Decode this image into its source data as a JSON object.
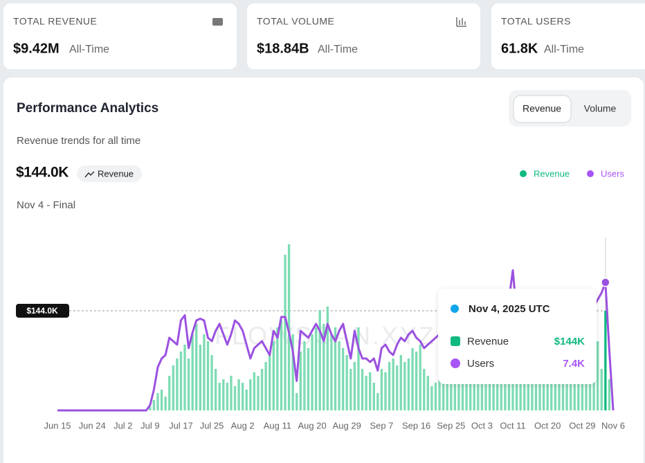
{
  "stats": [
    {
      "label": "TOTAL REVENUE",
      "value": "$9.42M",
      "period": "All-Time"
    },
    {
      "label": "TOTAL VOLUME",
      "value": "$18.84B",
      "period": "All-Time"
    },
    {
      "label": "TOTAL USERS",
      "value": "61.8K",
      "period": "All-Time"
    }
  ],
  "panel": {
    "title": "Performance Analytics",
    "subtitle": "Revenue trends for all time",
    "headline": "$144.0K",
    "badge": "Revenue",
    "date_label": "Nov 4 - Final",
    "toggle": [
      "Revenue",
      "Volume"
    ]
  },
  "chart_data": {
    "type": "bar",
    "categories": [
      "Jun 15",
      null,
      null,
      null,
      null,
      null,
      null,
      null,
      null,
      "Jun 24",
      null,
      null,
      null,
      null,
      null,
      null,
      null,
      "Jul 2",
      null,
      null,
      null,
      null,
      null,
      null,
      "Jul 9",
      null,
      null,
      null,
      null,
      null,
      null,
      null,
      "Jul 17",
      null,
      null,
      null,
      null,
      null,
      null,
      null,
      "Jul 25",
      null,
      null,
      null,
      null,
      null,
      null,
      null,
      "Aug 2",
      null,
      null,
      null,
      null,
      null,
      null,
      null,
      null,
      "Aug 11",
      null,
      null,
      null,
      null,
      null,
      null,
      null,
      null,
      "Aug 20",
      null,
      null,
      null,
      null,
      null,
      null,
      null,
      null,
      "Aug 29",
      null,
      null,
      null,
      null,
      null,
      null,
      null,
      null,
      "Sep 7",
      null,
      null,
      null,
      null,
      null,
      null,
      null,
      null,
      "Sep 16",
      null,
      null,
      null,
      null,
      null,
      null,
      null,
      null,
      "Sep 25",
      null,
      null,
      null,
      null,
      null,
      null,
      null,
      "Oct 3",
      null,
      null,
      null,
      null,
      null,
      null,
      null,
      "Oct 11",
      null,
      null,
      null,
      null,
      null,
      null,
      null,
      null,
      "Oct 20",
      null,
      null,
      null,
      null,
      null,
      null,
      null,
      null,
      "Oct 29",
      null,
      null,
      null,
      null,
      null,
      null,
      null,
      "Nov 6"
    ],
    "series": [
      {
        "name": "Revenue",
        "type": "bar",
        "color": "#7ddcb3",
        "active_color": "#10b981",
        "legend_color": "#10b981",
        "values": [
          0,
          0,
          0,
          0,
          0,
          0,
          0,
          0,
          0,
          0,
          0,
          0,
          0,
          0,
          0,
          0,
          0,
          0,
          0,
          0,
          0,
          0,
          0,
          0,
          5,
          15,
          25,
          30,
          20,
          50,
          65,
          75,
          85,
          95,
          75,
          110,
          125,
          95,
          110,
          100,
          80,
          60,
          40,
          45,
          40,
          50,
          35,
          45,
          40,
          30,
          45,
          55,
          50,
          60,
          70,
          80,
          100,
          120,
          130,
          225,
          240,
          110,
          25,
          85,
          100,
          90,
          110,
          120,
          145,
          125,
          150,
          110,
          120,
          100,
          90,
          80,
          60,
          70,
          120,
          60,
          50,
          55,
          40,
          25,
          60,
          55,
          70,
          75,
          65,
          80,
          70,
          75,
          90,
          85,
          95,
          60,
          50,
          35,
          40,
          45,
          50,
          55,
          48,
          52,
          60,
          45,
          50,
          58,
          62,
          55,
          48,
          52,
          60,
          65,
          58,
          50,
          55,
          62,
          70,
          65,
          60,
          55,
          58,
          62,
          68,
          60,
          55,
          50,
          58,
          65,
          70,
          62,
          58,
          66,
          72,
          68,
          75,
          80,
          85,
          90,
          100,
          60,
          144,
          45,
          0
        ]
      },
      {
        "name": "Users",
        "type": "line",
        "axis": "y2",
        "color": "#9b51e0",
        "legend_color": "#a855f7",
        "values": [
          0,
          0,
          0,
          0,
          0,
          0,
          0,
          0,
          0,
          0,
          0,
          0,
          0,
          0,
          0,
          0,
          0,
          0,
          0,
          0,
          0,
          0,
          0,
          0,
          0.3,
          1.2,
          2.5,
          3.0,
          3.2,
          4.2,
          4.0,
          3.8,
          5.2,
          5.5,
          3.6,
          4.5,
          5.2,
          5.3,
          5.2,
          4.2,
          4.0,
          4.6,
          5.0,
          4.4,
          3.8,
          4.4,
          5.2,
          5.0,
          4.6,
          3.8,
          3.0,
          3.6,
          3.8,
          4.0,
          3.6,
          3.2,
          4.6,
          4.2,
          5.4,
          5.4,
          4.5,
          3.4,
          1.7,
          4.6,
          4.4,
          4.2,
          4.6,
          5.0,
          4.6,
          4.0,
          5.0,
          4.4,
          4.0,
          4.6,
          5.0,
          4.0,
          3.0,
          4.6,
          3.6,
          3.0,
          3.0,
          2.8,
          3.0,
          2.3,
          3.6,
          3.8,
          3.4,
          3.2,
          3.8,
          4.2,
          4.0,
          4.4,
          4.6,
          4.2,
          4.0,
          3.6,
          3.8,
          4.0,
          4.2,
          4.4,
          4.2,
          4.6,
          4.8,
          4.4,
          4.2,
          4.6,
          5.0,
          4.8,
          4.4,
          4.6,
          5.0,
          5.2,
          4.8,
          4.6,
          5.0,
          5.4,
          5.8,
          6.4,
          8.1,
          5.6,
          5.0,
          4.8,
          5.2,
          5.0,
          4.6,
          4.8,
          5.2,
          5.0,
          4.8,
          5.2,
          5.4,
          5.0,
          4.8,
          5.2,
          5.6,
          5.4,
          5.0,
          5.2,
          5.6,
          6.0,
          6.4,
          6.8,
          7.4,
          3.5,
          0
        ]
      }
    ],
    "ylim": [
      0,
      250
    ],
    "y2lim": [
      0,
      10
    ],
    "active_index": 142,
    "reference_line": {
      "value": 144,
      "label": "$144.0K"
    },
    "watermark": "FLOWSCAN.XYZ",
    "tooltip": {
      "title": "Nov 4, 2025 UTC",
      "rows": [
        {
          "name": "Revenue",
          "value": "$144K"
        },
        {
          "name": "Users",
          "value": "7.4K"
        }
      ]
    }
  }
}
